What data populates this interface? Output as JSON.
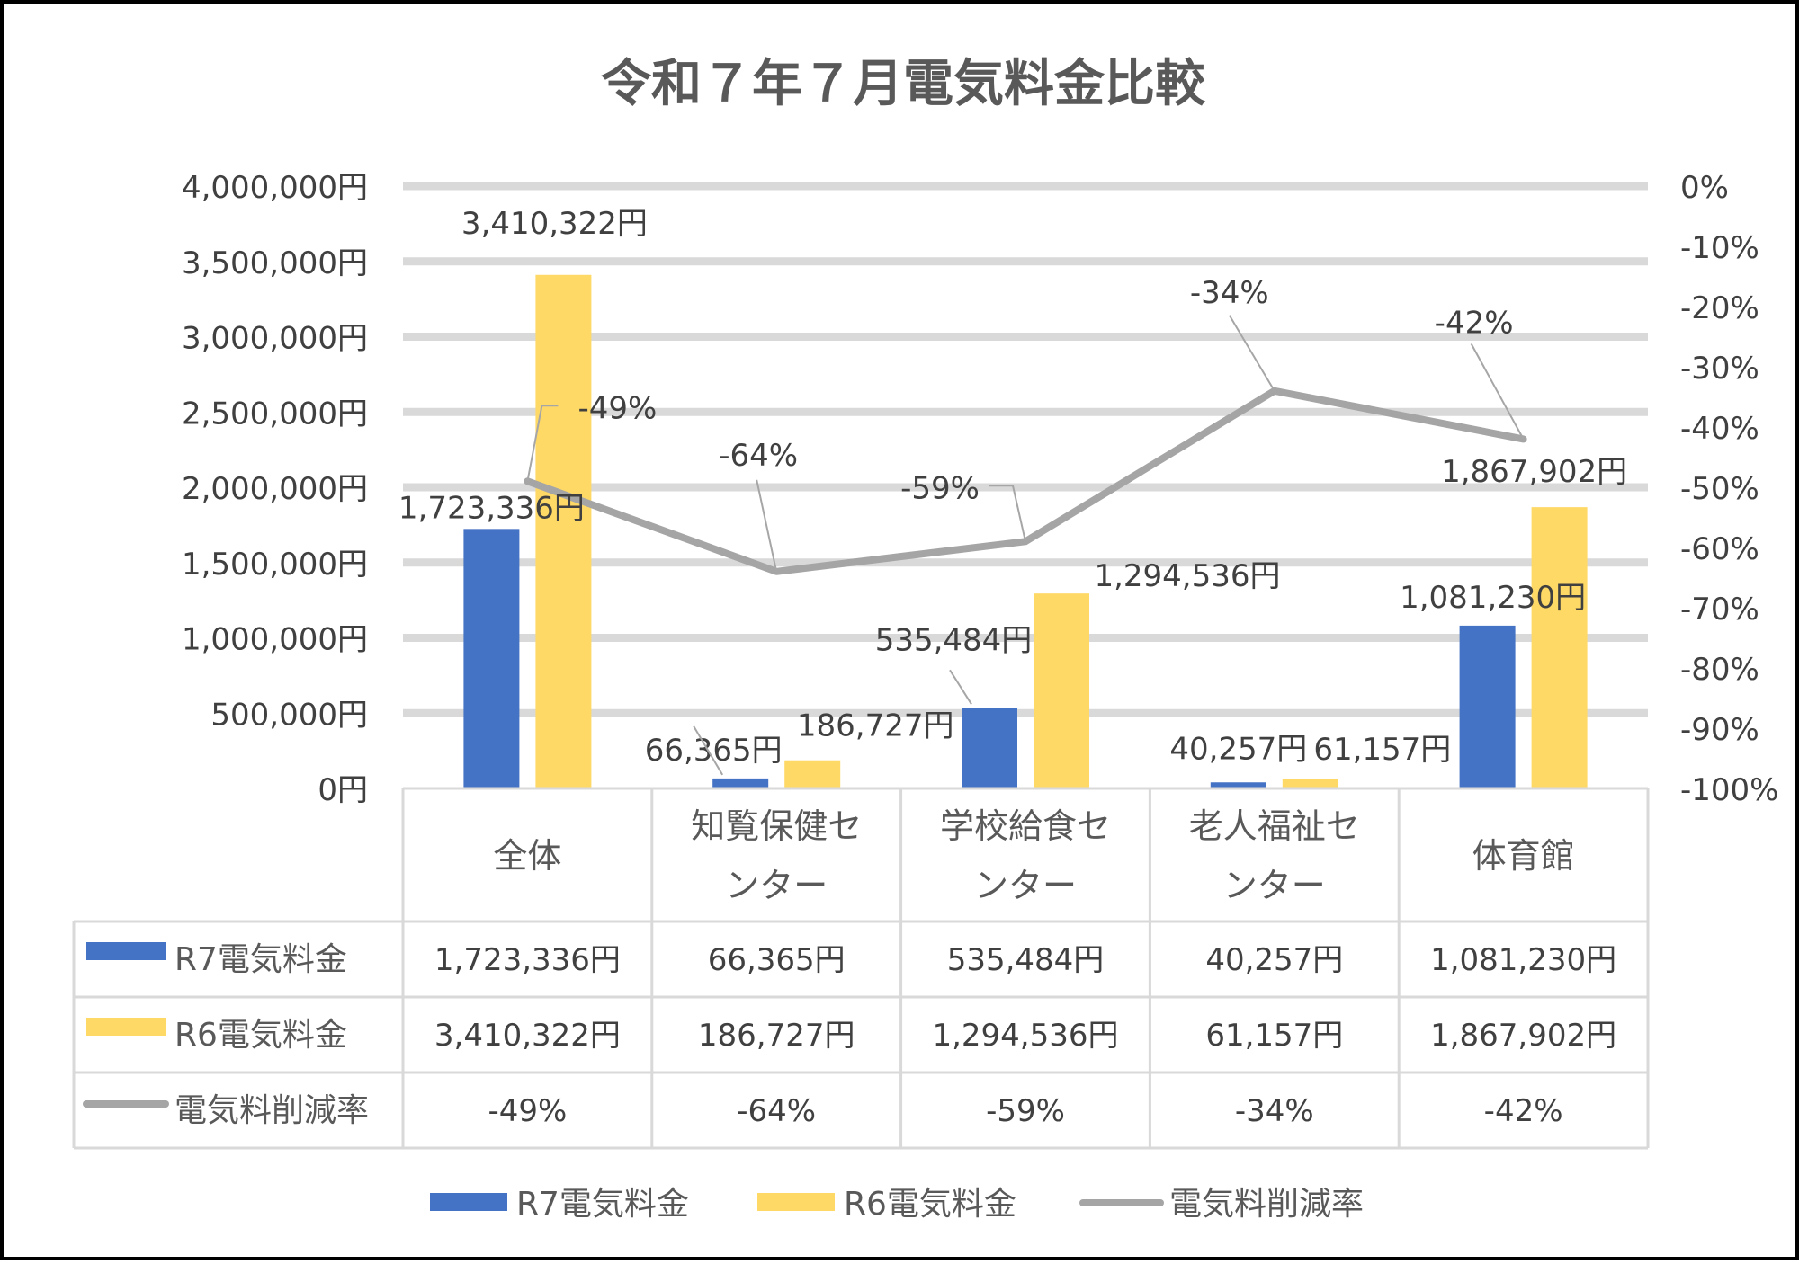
{
  "chart_data": {
    "type": "bar",
    "title": "令和７年７月電気料金比較",
    "categories": [
      [
        "全体"
      ],
      [
        "知覧保健セ",
        "ンター"
      ],
      [
        "学校給食セ",
        "ンター"
      ],
      [
        "老人福祉セ",
        "ンター"
      ],
      [
        "体育館"
      ]
    ],
    "series": [
      {
        "name": "R7電気料金",
        "type": "bar",
        "axis": "left",
        "color": "#4472C4",
        "values": [
          1723336,
          66365,
          535484,
          40257,
          1081230
        ],
        "labels": [
          "1,723,336円",
          "66,365円",
          "535,484円",
          "40,257円",
          "1,081,230円"
        ]
      },
      {
        "name": "R6電気料金",
        "type": "bar",
        "axis": "left",
        "color": "#FFD966",
        "values": [
          3410322,
          186727,
          1294536,
          61157,
          1867902
        ],
        "labels": [
          "3,410,322円",
          "186,727円",
          "1,294,536円",
          "61,157円",
          "1,867,902円"
        ]
      },
      {
        "name": "電気料削減率",
        "type": "line",
        "axis": "right",
        "color": "#A5A5A5",
        "values": [
          -49,
          -64,
          -59,
          -34,
          -42
        ],
        "labels": [
          "-49%",
          "-64%",
          "-59%",
          "-34%",
          "-42%"
        ]
      }
    ],
    "y_left": {
      "min": 0,
      "max": 4000000,
      "step": 500000,
      "tick_labels": [
        "0円",
        "500,000円",
        "1,000,000円",
        "1,500,000円",
        "2,000,000円",
        "2,500,000円",
        "3,000,000円",
        "3,500,000円",
        "4,000,000円"
      ]
    },
    "y_right": {
      "min": -100,
      "max": 0,
      "step": 10,
      "tick_labels": [
        "-100%",
        "-90%",
        "-80%",
        "-70%",
        "-60%",
        "-50%",
        "-40%",
        "-30%",
        "-20%",
        "-10%",
        "0%"
      ]
    },
    "grid": true,
    "data_table": true,
    "legend": "bottom",
    "gridline_color": "#D9D9D9",
    "table_border_color": "#D9D9D9"
  }
}
